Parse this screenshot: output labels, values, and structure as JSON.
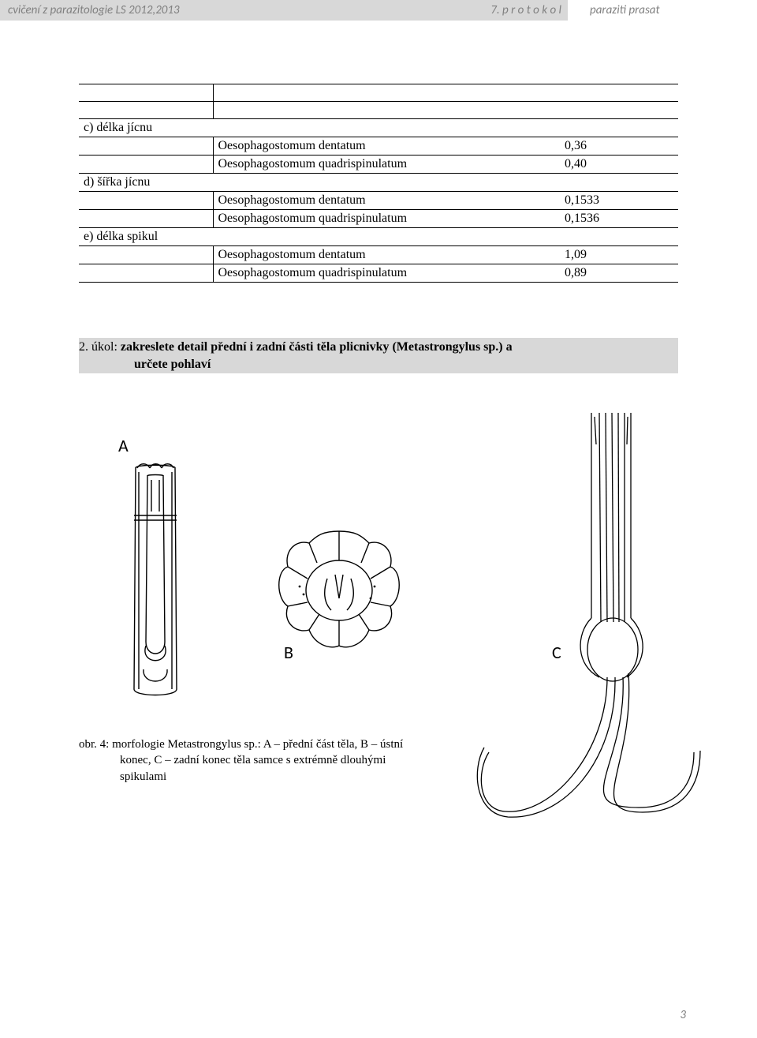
{
  "header": {
    "left_text": "cvičení z parazitologie LS 2012,2013",
    "center_text": "7. p r o t o k o l",
    "right_text": "paraziti prasat"
  },
  "table": {
    "rows": [
      {
        "c1": "",
        "c2": "",
        "c3": "",
        "midborder": true
      },
      {
        "c1": "",
        "c2": "",
        "c3": "",
        "midborder": true
      },
      {
        "c1": "c) délka jícnu",
        "c2": "",
        "c3": "",
        "midborder": false
      },
      {
        "c1": "",
        "c2": "Oesophagostomum dentatum",
        "c3": "0,36",
        "midborder": true
      },
      {
        "c1": "",
        "c2": "Oesophagostomum quadrispinulatum",
        "c3": "0,40",
        "midborder": true
      },
      {
        "c1": "d) šířka jícnu",
        "c2": "",
        "c3": "",
        "midborder": false
      },
      {
        "c1": "",
        "c2": "Oesophagostomum dentatum",
        "c3": "0,1533",
        "midborder": true
      },
      {
        "c1": "",
        "c2": "Oesophagostomum quadrispinulatum",
        "c3": "0,1536",
        "midborder": true
      },
      {
        "c1": "e) délka spikul",
        "c2": "",
        "c3": "",
        "midborder": false
      },
      {
        "c1": "",
        "c2": "Oesophagostomum dentatum",
        "c3": "1,09",
        "midborder": true
      },
      {
        "c1": "",
        "c2": "Oesophagostomum quadrispinulatum",
        "c3": "0,89",
        "midborder": true
      }
    ]
  },
  "task": {
    "prefix": "2. úkol: ",
    "bold_line1": "zakreslete detail přední i zadní části těla plicnivky (Metastrongylus sp.) a",
    "bold_line2": "určete pohlaví"
  },
  "figure_labels": {
    "a": "A",
    "b": "B",
    "c": "C"
  },
  "caption": {
    "line1": "obr. 4:  morfologie Metastrongylus sp.: A – přední část těla, B – ústní",
    "line2": "konec, C – zadní konec těla samce s extrémně dlouhými",
    "line3": "spikulami"
  },
  "page_number": "3",
  "colors": {
    "header_bg": "#d8d8d8",
    "header_text": "#808080",
    "stroke": "#000000"
  }
}
